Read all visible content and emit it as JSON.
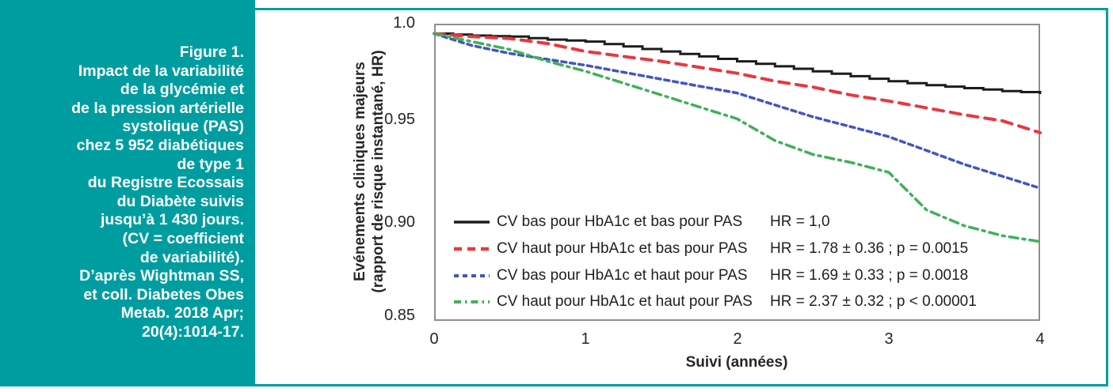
{
  "sidebar": {
    "bg_color": "#009da0",
    "text_color": "#ffffff",
    "lines": [
      "Figure 1.",
      "Impact de la variabilité",
      "de la glycémie et",
      "de la pression artérielle",
      "systolique (PAS)",
      "chez 5 952 diabétiques",
      "de type 1",
      "du Registre Ecossais",
      "du Diabète suivis",
      "jusqu’à 1 430 jours.",
      "(CV = coefficient",
      "de variabilité).",
      "D’après Wightman SS,",
      "et coll. Diabetes Obes",
      "Metab. 2018 Apr;",
      "20(4):1014-17."
    ]
  },
  "chart_data": {
    "type": "line",
    "title": "",
    "xlabel": "Suivi (années)",
    "ylabel_line1": "Evénements cliniques majeurs",
    "ylabel_line2": "(rapport de risque instantané, HR)",
    "xlim": [
      0,
      4
    ],
    "ylim": [
      0.85,
      1.0
    ],
    "x_ticks": [
      "0",
      "1",
      "2",
      "3",
      "4"
    ],
    "y_ticks": [
      "1.0",
      "0.95",
      "0.90",
      "0.85"
    ],
    "grid": false,
    "legend_position": "inside-bottom-left",
    "frame_color": "#009da0",
    "axis_box_color": "#8f8f8f",
    "x": [
      0,
      0.25,
      0.5,
      0.75,
      1,
      1.25,
      1.5,
      1.75,
      2,
      2.25,
      2.5,
      2.75,
      3,
      3.25,
      3.5,
      3.75,
      4
    ],
    "series": [
      {
        "name": "CV bas pour HbA1c et bas pour PAS",
        "hr_label": "HR = 1,0",
        "color": "#1c1c1c",
        "line_style": "solid",
        "values": [
          0.995,
          0.994,
          0.9935,
          0.992,
          0.991,
          0.9885,
          0.986,
          0.9835,
          0.981,
          0.9785,
          0.976,
          0.9735,
          0.971,
          0.969,
          0.9675,
          0.966,
          0.965
        ]
      },
      {
        "name": "CV haut pour HbA1c et bas pour PAS",
        "hr_label": "HR = 1.78 ± 0.36 ; p = 0.0015",
        "color": "#e8383f",
        "line_style": "long-dash",
        "values": [
          0.995,
          0.9935,
          0.9925,
          0.99,
          0.986,
          0.9835,
          0.981,
          0.978,
          0.975,
          0.971,
          0.968,
          0.964,
          0.961,
          0.9575,
          0.954,
          0.951,
          0.945
        ]
      },
      {
        "name": "CV bas pour HbA1c et haut pour PAS",
        "hr_label": "HR = 1.69 ± 0.33 ; p = 0.0018",
        "color": "#4355bf",
        "line_style": "short-dash",
        "values": [
          0.995,
          0.989,
          0.985,
          0.982,
          0.979,
          0.9755,
          0.972,
          0.9685,
          0.965,
          0.959,
          0.953,
          0.948,
          0.943,
          0.936,
          0.929,
          0.923,
          0.917
        ]
      },
      {
        "name": "CV haut pour HbA1c et haut pour PAS",
        "hr_label": "HR = 2.37 ± 0.32 ; p < 0.00001",
        "color": "#41b05a",
        "line_style": "dash-dot",
        "values": [
          0.995,
          0.991,
          0.987,
          0.981,
          0.976,
          0.97,
          0.964,
          0.958,
          0.952,
          0.941,
          0.934,
          0.93,
          0.925,
          0.906,
          0.898,
          0.893,
          0.89
        ]
      }
    ]
  }
}
